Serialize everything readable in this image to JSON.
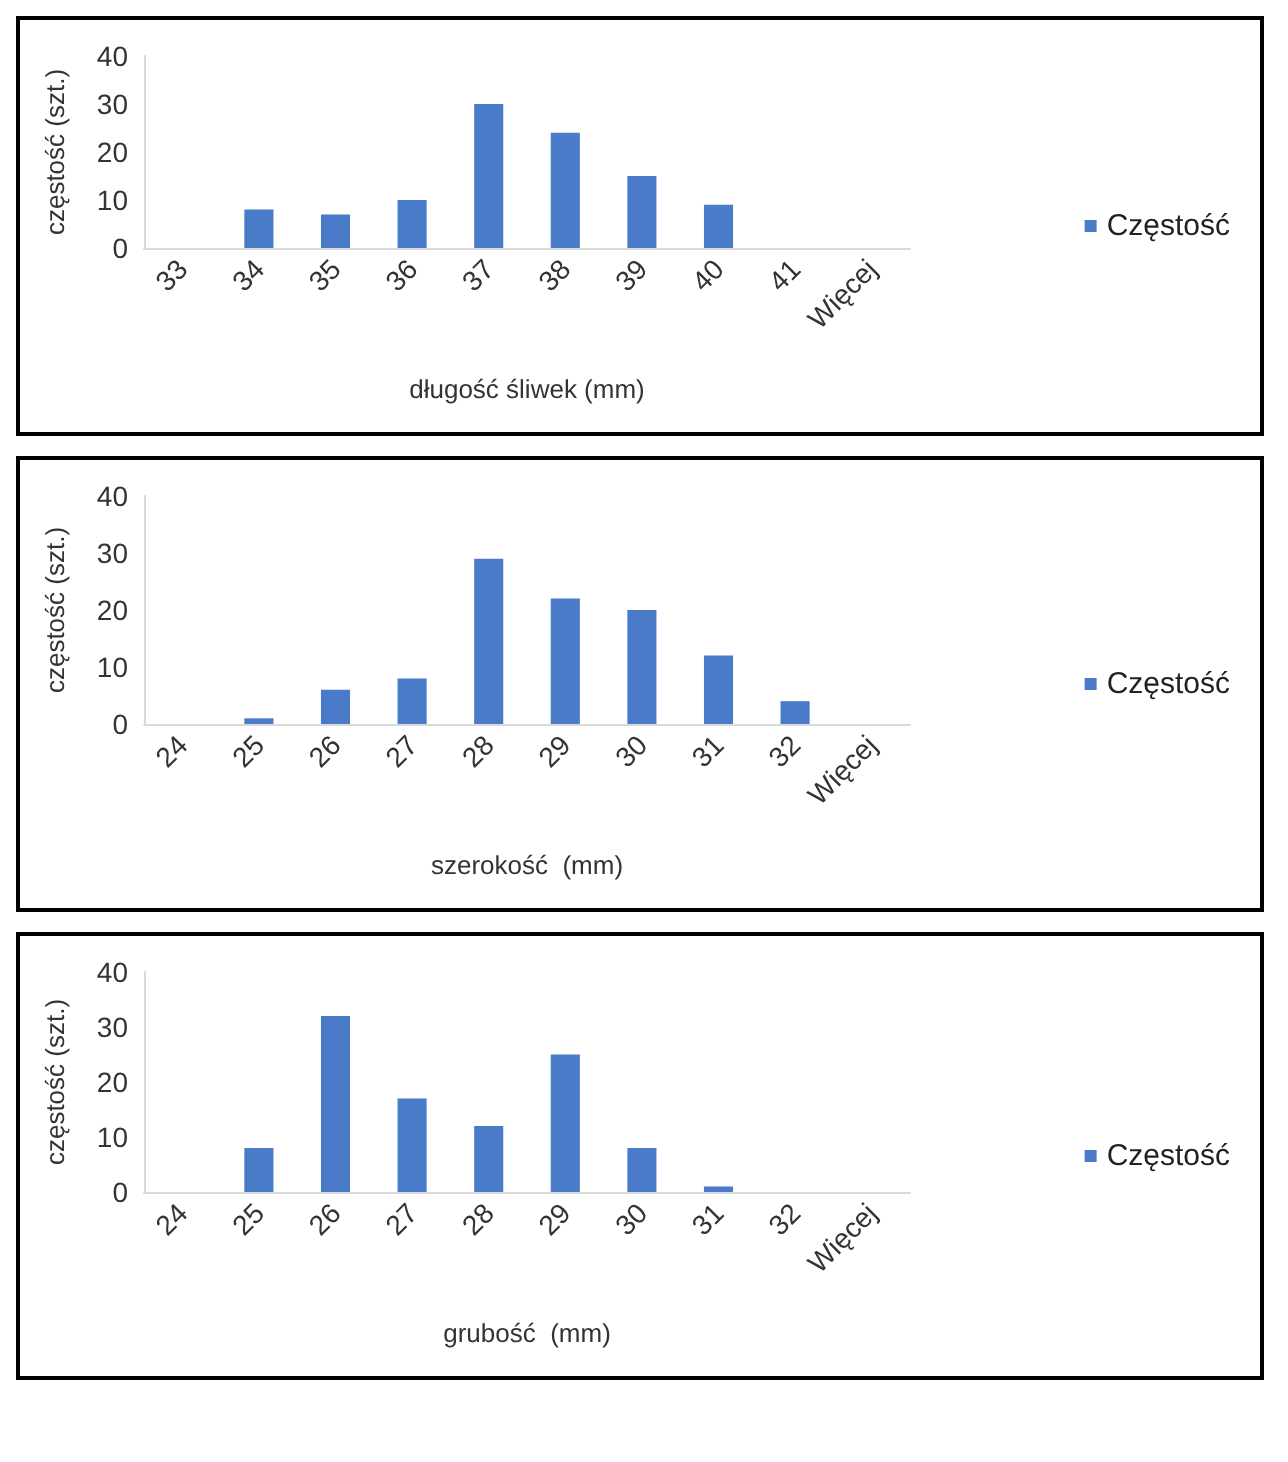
{
  "chart_data": [
    {
      "type": "bar",
      "xlabel": "długość śliwek (mm)",
      "ylabel": "częstość (szt.)",
      "categories": [
        "33",
        "34",
        "35",
        "36",
        "37",
        "38",
        "39",
        "40",
        "41",
        "Więcej"
      ],
      "series": [
        {
          "name": "Częstość",
          "color": "#4a7bc8",
          "values": [
            0,
            8,
            7,
            10,
            30,
            24,
            15,
            9,
            0,
            0
          ]
        }
      ],
      "ylim": [
        0,
        40
      ],
      "yticks": [
        0,
        10,
        20,
        30,
        40
      ],
      "grid": false,
      "legend": "right"
    },
    {
      "type": "bar",
      "xlabel": "szerokość  (mm)",
      "ylabel": "częstość (szt.)",
      "categories": [
        "24",
        "25",
        "26",
        "27",
        "28",
        "29",
        "30",
        "31",
        "32",
        "Więcej"
      ],
      "series": [
        {
          "name": "Częstość",
          "color": "#4a7bc8",
          "values": [
            0,
            1,
            6,
            8,
            29,
            22,
            20,
            12,
            4,
            0
          ]
        }
      ],
      "ylim": [
        0,
        40
      ],
      "yticks": [
        0,
        10,
        20,
        30,
        40
      ],
      "grid": false,
      "legend": "right"
    },
    {
      "type": "bar",
      "xlabel": "grubość  (mm)",
      "ylabel": "częstość (szt.)",
      "categories": [
        "24",
        "25",
        "26",
        "27",
        "28",
        "29",
        "30",
        "31",
        "32",
        "Więcej"
      ],
      "series": [
        {
          "name": "Częstość",
          "color": "#4a7bc8",
          "values": [
            0,
            8,
            32,
            17,
            12,
            25,
            8,
            1,
            0,
            0
          ]
        }
      ],
      "ylim": [
        0,
        40
      ],
      "yticks": [
        0,
        10,
        20,
        30,
        40
      ],
      "grid": false,
      "legend": "right"
    }
  ]
}
